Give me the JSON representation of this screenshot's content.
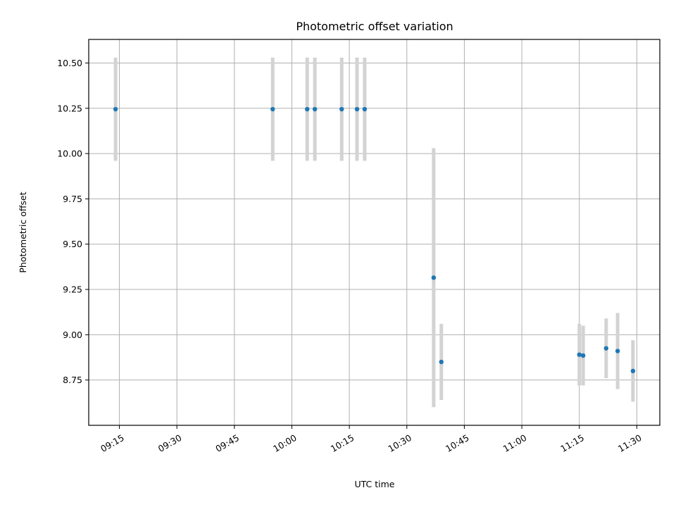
{
  "chart_data": {
    "type": "scatter",
    "title": "Photometric offset variation",
    "xlabel": "UTC time",
    "ylabel": "Photometric offset",
    "grid": true,
    "xlim": [
      "09:07",
      "11:36"
    ],
    "ylim": [
      8.5,
      10.63
    ],
    "xticks": [
      "09:15",
      "09:30",
      "09:45",
      "10:00",
      "10:15",
      "10:30",
      "10:45",
      "11:00",
      "11:15",
      "11:30"
    ],
    "yticks": [
      8.75,
      9.0,
      9.25,
      9.5,
      9.75,
      10.0,
      10.25,
      10.5
    ],
    "ytick_labels": [
      "8.75",
      "9.00",
      "9.25",
      "9.50",
      "9.75",
      "10.00",
      "10.25",
      "10.50"
    ],
    "series": [
      {
        "marker_color": "#1f77b4",
        "error_color": "#d3d3d3",
        "points": [
          {
            "x": "09:14",
            "y": 10.245,
            "err_low": 9.96,
            "err_high": 10.53
          },
          {
            "x": "09:55",
            "y": 10.245,
            "err_low": 9.96,
            "err_high": 10.53
          },
          {
            "x": "10:04",
            "y": 10.245,
            "err_low": 9.96,
            "err_high": 10.53
          },
          {
            "x": "10:06",
            "y": 10.245,
            "err_low": 9.96,
            "err_high": 10.53
          },
          {
            "x": "10:13",
            "y": 10.245,
            "err_low": 9.96,
            "err_high": 10.53
          },
          {
            "x": "10:17",
            "y": 10.245,
            "err_low": 9.96,
            "err_high": 10.53
          },
          {
            "x": "10:19",
            "y": 10.245,
            "err_low": 9.96,
            "err_high": 10.53
          },
          {
            "x": "10:37",
            "y": 9.315,
            "err_low": 8.6,
            "err_high": 10.03
          },
          {
            "x": "10:39",
            "y": 8.85,
            "err_low": 8.64,
            "err_high": 9.06
          },
          {
            "x": "11:15",
            "y": 8.89,
            "err_low": 8.72,
            "err_high": 9.06
          },
          {
            "x": "11:16",
            "y": 8.885,
            "err_low": 8.72,
            "err_high": 9.05
          },
          {
            "x": "11:22",
            "y": 8.925,
            "err_low": 8.76,
            "err_high": 9.09
          },
          {
            "x": "11:25",
            "y": 8.91,
            "err_low": 8.7,
            "err_high": 9.12
          },
          {
            "x": "11:29",
            "y": 8.8,
            "err_low": 8.63,
            "err_high": 8.97
          }
        ]
      }
    ]
  }
}
